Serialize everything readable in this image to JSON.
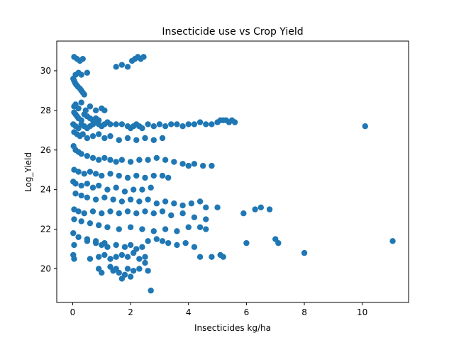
{
  "chart_data": {
    "type": "scatter",
    "title": "Insecticide use vs Crop Yield",
    "xlabel": "Insecticides kg/ha",
    "ylabel": "Log_Yield",
    "xlim": [
      -0.55,
      11.6
    ],
    "ylim": [
      18.3,
      31.5
    ],
    "xticks": [
      0,
      2,
      4,
      6,
      8,
      10
    ],
    "yticks": [
      20,
      22,
      24,
      26,
      28,
      30
    ],
    "grid": false,
    "legend": "none",
    "marker_color": "#1f77b4",
    "series": [
      {
        "x": [
          0.02,
          0.05,
          0.08,
          0.12,
          0.18,
          0.25,
          0.3,
          0.35,
          0.4,
          0.05,
          0.1,
          0.2,
          0.3,
          0.45,
          0.6,
          0.8,
          1.0,
          1.1,
          0.05,
          0.1,
          0.15,
          0.2,
          0.3,
          0.4,
          0.5,
          0.6,
          0.7,
          0.8,
          0.9,
          0.02,
          0.1,
          0.2,
          0.3,
          0.4,
          0.5,
          0.6,
          0.7,
          0.8,
          0.9,
          1.0,
          1.1,
          1.2,
          1.3,
          1.5,
          1.7,
          1.9,
          2.0,
          2.1,
          2.2,
          2.3,
          2.4,
          2.6,
          2.8,
          3.0,
          3.2,
          3.4,
          3.6,
          3.8,
          4.0,
          4.2,
          4.4,
          4.6,
          4.8,
          5.0,
          5.1,
          5.2,
          5.3,
          5.4,
          5.5,
          5.6,
          10.1,
          0.05,
          0.15,
          0.25,
          0.35,
          0.5,
          0.7,
          0.9,
          1.1,
          1.3,
          1.6,
          1.9,
          2.2,
          2.5,
          2.8,
          3.1,
          0.03,
          0.1,
          0.2,
          0.3,
          0.5,
          0.7,
          0.9,
          1.1,
          1.3,
          1.5,
          1.7,
          2.0,
          2.3,
          2.6,
          2.9,
          3.2,
          3.5,
          3.8,
          4.0,
          4.2,
          4.5,
          4.8,
          0.05,
          0.2,
          0.4,
          0.6,
          0.8,
          1.0,
          1.3,
          1.6,
          1.9,
          2.2,
          2.5,
          2.8,
          3.1,
          3.3,
          0.02,
          0.1,
          0.3,
          0.5,
          0.7,
          0.9,
          1.2,
          1.5,
          1.8,
          2.1,
          2.4,
          2.7,
          0.1,
          0.3,
          0.5,
          0.8,
          1.1,
          1.4,
          1.7,
          2.0,
          2.3,
          2.6,
          2.9,
          3.2,
          3.5,
          3.8,
          4.1,
          4.4,
          4.6,
          0.05,
          0.2,
          0.4,
          0.7,
          1.0,
          1.3,
          1.6,
          1.9,
          2.2,
          2.5,
          2.8,
          3.1,
          3.4,
          3.8,
          4.2,
          4.6,
          5.0,
          5.9,
          6.3,
          6.5,
          6.8,
          0.05,
          0.3,
          0.6,
          0.9,
          1.2,
          1.6,
          2.0,
          2.4,
          2.8,
          3.2,
          3.6,
          4.0,
          4.4,
          4.6,
          0.02,
          0.2,
          0.5,
          0.8,
          1.1,
          0.05,
          0.5,
          0.8,
          1.0,
          1.2,
          1.5,
          1.8,
          2.0,
          2.2,
          2.4,
          2.6,
          2.9,
          3.1,
          3.3,
          3.6,
          3.9,
          4.2,
          4.4,
          4.8,
          5.1,
          5.2,
          6.0,
          7.0,
          7.1,
          8.0,
          11.05,
          0.02,
          0.05,
          0.6,
          0.9,
          1.1,
          1.3,
          1.5,
          1.7,
          1.9,
          2.1,
          2.3,
          2.5,
          0.9,
          1.0,
          1.3,
          1.4,
          1.5,
          1.6,
          1.7,
          1.8,
          1.9,
          2.0,
          2.1,
          2.3,
          2.5,
          2.6,
          2.7,
          0.05,
          0.15,
          0.25,
          0.35,
          1.5,
          1.7,
          1.9,
          2.05,
          2.15,
          2.25,
          2.35,
          2.45,
          0.1,
          0.2,
          0.3,
          0.5
        ],
        "y": [
          29.6,
          29.5,
          29.4,
          29.3,
          29.2,
          29.1,
          29.0,
          28.9,
          28.8,
          28.2,
          28.3,
          28.1,
          28.4,
          28.0,
          28.2,
          28.0,
          28.1,
          28.0,
          27.9,
          27.8,
          27.7,
          27.6,
          27.5,
          27.8,
          27.7,
          27.6,
          27.5,
          27.6,
          27.5,
          27.3,
          27.2,
          27.1,
          27.3,
          27.2,
          27.1,
          27.2,
          27.3,
          27.4,
          27.3,
          27.2,
          27.3,
          27.4,
          27.3,
          27.3,
          27.3,
          27.2,
          27.1,
          27.2,
          27.3,
          27.2,
          27.1,
          27.3,
          27.2,
          27.3,
          27.2,
          27.3,
          27.3,
          27.2,
          27.3,
          27.3,
          27.4,
          27.3,
          27.3,
          27.4,
          27.5,
          27.5,
          27.5,
          27.4,
          27.5,
          27.4,
          27.2,
          26.9,
          26.8,
          26.7,
          26.8,
          26.6,
          26.7,
          26.8,
          26.6,
          26.7,
          26.5,
          26.6,
          26.5,
          26.6,
          26.5,
          26.6,
          26.2,
          26.0,
          25.9,
          25.8,
          25.7,
          25.6,
          25.5,
          25.6,
          25.5,
          25.4,
          25.5,
          25.4,
          25.5,
          25.5,
          25.6,
          25.5,
          25.4,
          25.3,
          25.2,
          25.3,
          25.2,
          25.2,
          25.0,
          24.9,
          24.8,
          24.9,
          24.8,
          24.7,
          24.8,
          24.7,
          24.6,
          24.7,
          24.6,
          24.7,
          24.7,
          24.6,
          24.4,
          24.3,
          24.2,
          24.3,
          24.1,
          24.2,
          24.0,
          24.1,
          23.9,
          24.0,
          24.0,
          24.1,
          23.8,
          23.7,
          23.6,
          23.5,
          23.6,
          23.5,
          23.4,
          23.5,
          23.4,
          23.5,
          23.3,
          23.4,
          23.3,
          23.2,
          23.3,
          23.4,
          23.1,
          23.0,
          22.9,
          22.8,
          22.9,
          22.8,
          22.9,
          22.8,
          22.9,
          22.8,
          22.9,
          22.8,
          22.9,
          22.7,
          22.8,
          22.6,
          22.5,
          23.1,
          22.8,
          23.0,
          23.1,
          23.0,
          22.5,
          22.4,
          22.3,
          22.2,
          22.1,
          22.0,
          22.1,
          22.0,
          21.9,
          22.0,
          21.9,
          22.1,
          22.1,
          22.0,
          21.8,
          21.6,
          21.5,
          21.4,
          21.3,
          21.2,
          21.4,
          21.3,
          21.2,
          21.1,
          21.2,
          21.1,
          21.2,
          21.0,
          21.1,
          21.4,
          21.5,
          21.4,
          21.3,
          21.2,
          21.3,
          21.1,
          20.6,
          20.6,
          20.7,
          20.6,
          21.3,
          21.5,
          21.3,
          20.8,
          21.4,
          20.7,
          20.5,
          20.5,
          20.6,
          20.7,
          20.5,
          20.6,
          20.7,
          20.6,
          20.8,
          20.5,
          20.6,
          20.0,
          19.8,
          20.1,
          19.9,
          20.0,
          19.8,
          19.5,
          19.7,
          20.0,
          19.6,
          19.9,
          20.0,
          20.3,
          19.9,
          18.9,
          30.7,
          30.6,
          30.5,
          30.6,
          30.2,
          30.3,
          30.2,
          30.5,
          30.6,
          30.7,
          30.6,
          30.7,
          29.8,
          29.9,
          29.8,
          29.9
        ]
      }
    ]
  }
}
